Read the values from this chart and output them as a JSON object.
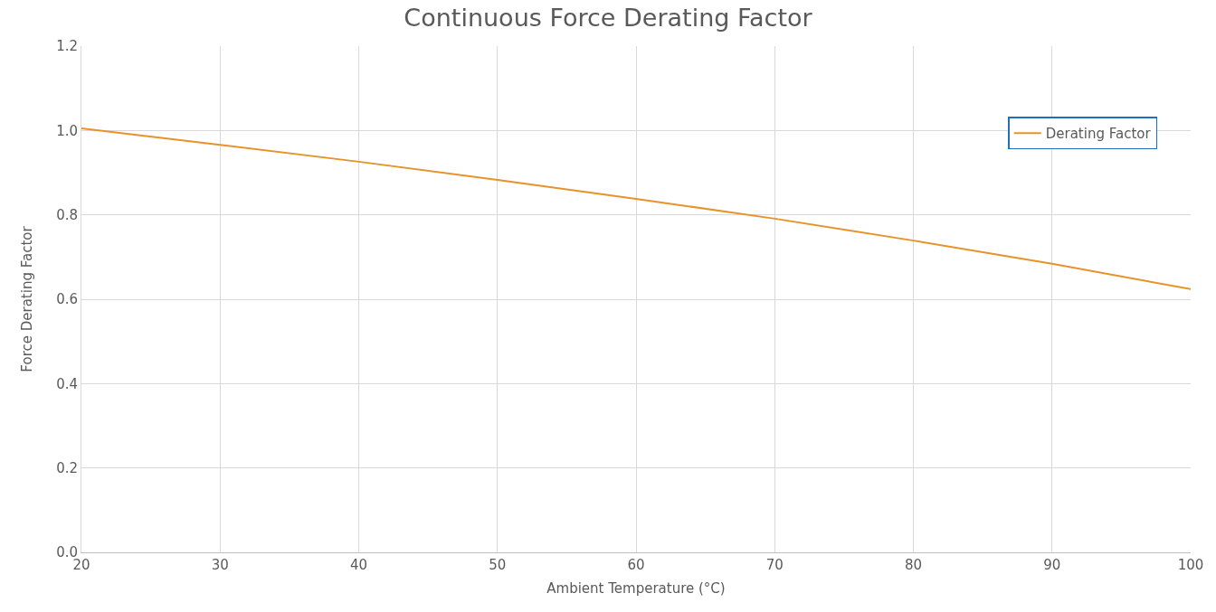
{
  "chart_data": {
    "type": "line",
    "title": "Continuous Force Derating Factor",
    "xlabel": "Ambient Temperature (°C)",
    "ylabel": "Force Derating Factor",
    "x": [
      20,
      30,
      40,
      50,
      60,
      70,
      80,
      90,
      100
    ],
    "series": [
      {
        "name": "Derating Factor",
        "color": "#e8922a",
        "values": [
          1.005,
          0.966,
          0.926,
          0.883,
          0.838,
          0.791,
          0.739,
          0.684,
          0.624
        ]
      }
    ],
    "xlim": [
      20,
      100
    ],
    "xticks": [
      20,
      30,
      40,
      50,
      60,
      70,
      80,
      90,
      100
    ],
    "ylim": [
      0,
      1.2
    ],
    "yticks": [
      {
        "value": 0,
        "label": "0.0"
      },
      0.2,
      0.4,
      0.6,
      0.8,
      {
        "value": 1,
        "label": "1.0"
      },
      1.2
    ],
    "grid": true,
    "legend": "top right",
    "marker": "none",
    "line_style": "solid"
  }
}
